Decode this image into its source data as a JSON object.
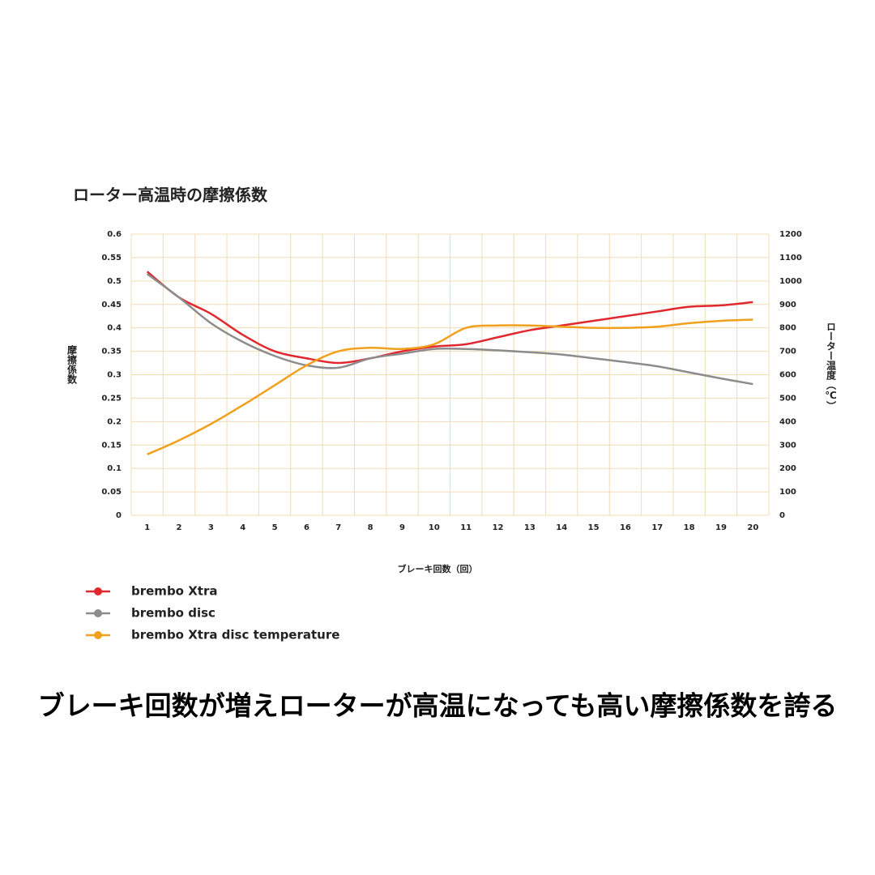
{
  "chart_data": {
    "type": "line",
    "title": "ローター高温時の摩擦係数",
    "categories": [
      "1",
      "2",
      "3",
      "4",
      "5",
      "6",
      "7",
      "8",
      "9",
      "10",
      "11",
      "12",
      "13",
      "14",
      "15",
      "16",
      "17",
      "18",
      "19",
      "20"
    ],
    "series": [
      {
        "name": "brembo Xtra",
        "color": "#e0282e",
        "values": [
          0.52,
          0.465,
          0.43,
          0.385,
          0.35,
          0.335,
          0.325,
          0.335,
          0.35,
          0.36,
          0.365,
          0.38,
          0.395,
          0.405,
          0.415,
          0.425,
          0.435,
          0.445,
          0.448,
          0.455
        ]
      },
      {
        "name": "brembo disc",
        "color": "#8c8c8c",
        "values": [
          0.515,
          0.465,
          0.41,
          0.37,
          0.34,
          0.32,
          0.315,
          0.335,
          0.345,
          0.355,
          0.355,
          0.352,
          0.348,
          0.343,
          0.335,
          0.327,
          0.318,
          0.305,
          0.292,
          0.28
        ]
      },
      {
        "name": "brembo Xtra disc temperature",
        "color": "#f0a01c",
        "axis": "y2",
        "values": [
          260,
          320,
          390,
          470,
          555,
          640,
          700,
          715,
          710,
          730,
          800,
          810,
          810,
          805,
          800,
          800,
          805,
          820,
          830,
          835
        ]
      }
    ],
    "x_label": "ブレーキ回数（回）",
    "y_label": "摩擦係数",
    "y2_label": "ローター温度（℃）",
    "ylim": [
      0,
      0.6
    ],
    "yticks": [
      0,
      0.05,
      0.1,
      0.15,
      0.2,
      0.25,
      0.3,
      0.35,
      0.4,
      0.45,
      0.5,
      0.55,
      0.6
    ],
    "y2lim": [
      0,
      1200
    ],
    "y2ticks": [
      0,
      100,
      200,
      300,
      400,
      500,
      600,
      700,
      800,
      900,
      1000,
      1100,
      1200
    ],
    "grid": true
  },
  "caption": "ブレーキ回数が増えローターが高温になっても高い摩擦係数を誇る"
}
